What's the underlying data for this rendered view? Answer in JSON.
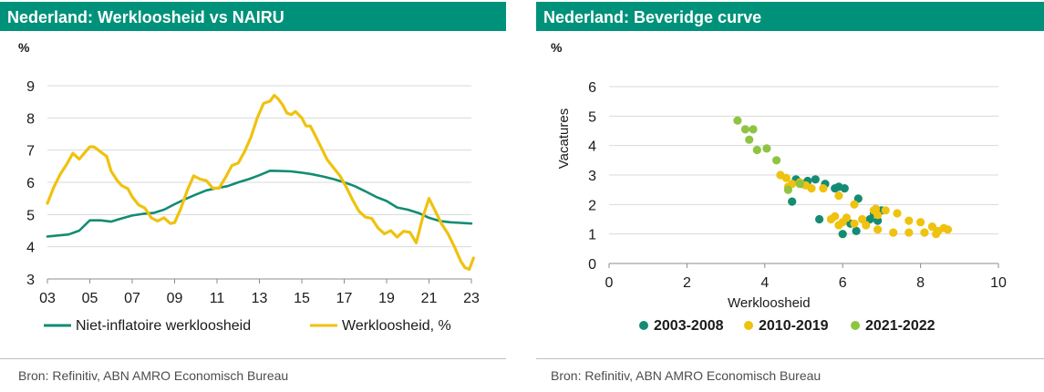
{
  "colors": {
    "header": "#00917a",
    "green": "#138c73",
    "gold": "#efc20f",
    "lightgreen": "#8fc442",
    "grid": "#d9d9d9",
    "axis": "#8c8c8c"
  },
  "left": {
    "title": "Nederland: Werkloosheid vs NAIRU",
    "unit": "%",
    "source": "Bron: Refinitiv, ABN AMRO Economisch Bureau"
  },
  "right": {
    "title": "Nederland: Beveridge curve",
    "unit": "%",
    "source": "Bron: Refinitiv, ABN AMRO Economisch Bureau"
  },
  "chart_data": [
    {
      "type": "line",
      "title": "Nederland: Werkloosheid vs NAIRU",
      "ylabel": "%",
      "xlim": [
        3,
        23
      ],
      "ylim": [
        3,
        9
      ],
      "xticks": [
        "03",
        "05",
        "07",
        "09",
        "11",
        "13",
        "15",
        "17",
        "19",
        "21",
        "23"
      ],
      "yticks": [
        "3",
        "4",
        "5",
        "6",
        "7",
        "8",
        "9"
      ],
      "series": [
        {
          "name": "Niet-inflatoire werkloosheid",
          "color": "#138c73",
          "x": [
            3.0,
            3.5,
            4.0,
            4.5,
            5.0,
            5.5,
            6.0,
            6.5,
            7.0,
            7.5,
            8.0,
            8.5,
            9.0,
            9.5,
            10.0,
            10.5,
            11.0,
            11.5,
            12.0,
            12.5,
            13.0,
            13.5,
            14.0,
            14.5,
            15.0,
            15.5,
            16.0,
            16.5,
            17.0,
            17.5,
            18.0,
            18.5,
            19.0,
            19.5,
            20.0,
            20.5,
            21.0,
            21.5,
            22.0,
            22.5,
            23.0
          ],
          "y": [
            4.32,
            4.35,
            4.38,
            4.5,
            4.82,
            4.82,
            4.78,
            4.88,
            4.97,
            5.02,
            5.05,
            5.15,
            5.32,
            5.48,
            5.62,
            5.75,
            5.82,
            5.88,
            6.0,
            6.1,
            6.22,
            6.36,
            6.35,
            6.34,
            6.3,
            6.25,
            6.18,
            6.1,
            6.0,
            5.88,
            5.72,
            5.55,
            5.42,
            5.22,
            5.15,
            5.05,
            4.9,
            4.8,
            4.76,
            4.74,
            4.72
          ]
        },
        {
          "name": "Werkloosheid, %",
          "color": "#efc20f",
          "x": [
            3.0,
            3.3,
            3.6,
            3.9,
            4.2,
            4.5,
            4.8,
            5.0,
            5.2,
            5.5,
            5.8,
            6.0,
            6.3,
            6.5,
            6.8,
            7.0,
            7.3,
            7.6,
            7.9,
            8.2,
            8.5,
            8.8,
            9.0,
            9.3,
            9.6,
            9.9,
            10.2,
            10.5,
            10.8,
            11.1,
            11.4,
            11.7,
            12.0,
            12.3,
            12.6,
            12.9,
            13.2,
            13.5,
            13.7,
            13.9,
            14.1,
            14.3,
            14.5,
            14.7,
            15.0,
            15.2,
            15.4,
            15.6,
            15.9,
            16.2,
            16.5,
            16.8,
            17.1,
            17.4,
            17.7,
            18.0,
            18.3,
            18.6,
            18.9,
            19.2,
            19.5,
            19.8,
            20.1,
            20.4,
            20.7,
            21.0,
            21.3,
            21.6,
            21.9,
            22.2,
            22.5,
            22.7,
            22.9,
            23.1
          ],
          "y": [
            5.35,
            5.85,
            6.25,
            6.55,
            6.9,
            6.72,
            6.95,
            7.1,
            7.1,
            6.95,
            6.8,
            6.35,
            6.05,
            5.9,
            5.8,
            5.55,
            5.3,
            5.2,
            4.9,
            4.8,
            4.9,
            4.72,
            4.75,
            5.2,
            5.75,
            6.2,
            6.1,
            6.05,
            5.82,
            5.82,
            6.15,
            6.52,
            6.6,
            6.95,
            7.4,
            8.0,
            8.45,
            8.52,
            8.7,
            8.58,
            8.4,
            8.15,
            8.1,
            8.2,
            8.0,
            7.75,
            7.75,
            7.5,
            7.1,
            6.7,
            6.45,
            6.2,
            5.85,
            5.45,
            5.1,
            4.92,
            4.88,
            4.58,
            4.4,
            4.5,
            4.3,
            4.48,
            4.45,
            4.12,
            4.9,
            5.5,
            5.1,
            4.7,
            4.4,
            4.0,
            3.55,
            3.35,
            3.3,
            3.65
          ]
        }
      ],
      "legend": "bottom"
    },
    {
      "type": "scatter",
      "title": "Nederland: Beveridge curve",
      "xlabel": "Werkloosheid",
      "ylabel": "Vacatures",
      "unit_label": "%",
      "xlim": [
        0,
        10
      ],
      "ylim": [
        0,
        6
      ],
      "xticks": [
        "0",
        "2",
        "4",
        "6",
        "8",
        "10"
      ],
      "yticks": [
        "0",
        "1",
        "2",
        "3",
        "4",
        "5",
        "6"
      ],
      "series": [
        {
          "name": "2003-2008",
          "color": "#138c73",
          "points": [
            [
              4.7,
              2.1
            ],
            [
              4.8,
              2.85
            ],
            [
              4.95,
              2.7
            ],
            [
              5.1,
              2.8
            ],
            [
              5.3,
              2.85
            ],
            [
              5.55,
              2.7
            ],
            [
              5.8,
              2.55
            ],
            [
              5.9,
              2.6
            ],
            [
              6.05,
              2.55
            ],
            [
              6.4,
              2.2
            ],
            [
              6.85,
              1.85
            ],
            [
              7.0,
              1.8
            ],
            [
              6.7,
              1.5
            ],
            [
              6.9,
              1.45
            ],
            [
              5.4,
              1.5
            ],
            [
              6.0,
              1.0
            ],
            [
              6.35,
              1.1
            ],
            [
              6.6,
              1.4
            ],
            [
              6.8,
              1.7
            ],
            [
              6.2,
              1.35
            ]
          ]
        },
        {
          "name": "2010-2019",
          "color": "#efc20f",
          "points": [
            [
              4.4,
              3.0
            ],
            [
              4.55,
              2.9
            ],
            [
              4.9,
              2.75
            ],
            [
              5.2,
              2.55
            ],
            [
              5.5,
              2.55
            ],
            [
              5.9,
              2.3
            ],
            [
              6.3,
              2.0
            ],
            [
              6.8,
              1.8
            ],
            [
              7.1,
              1.8
            ],
            [
              7.4,
              1.7
            ],
            [
              7.7,
              1.45
            ],
            [
              8.0,
              1.4
            ],
            [
              8.3,
              1.25
            ],
            [
              8.6,
              1.2
            ],
            [
              8.7,
              1.15
            ],
            [
              8.4,
              1.0
            ],
            [
              8.1,
              1.05
            ],
            [
              7.7,
              1.05
            ],
            [
              7.3,
              1.05
            ],
            [
              6.9,
              1.15
            ],
            [
              6.6,
              1.3
            ],
            [
              6.3,
              1.35
            ],
            [
              6.0,
              1.4
            ],
            [
              5.8,
              1.6
            ],
            [
              6.1,
              1.55
            ],
            [
              6.5,
              1.5
            ],
            [
              6.9,
              1.65
            ],
            [
              5.9,
              1.3
            ],
            [
              5.7,
              1.5
            ],
            [
              4.6,
              2.6
            ],
            [
              4.7,
              2.7
            ],
            [
              5.05,
              2.65
            ],
            [
              6.85,
              1.85
            ],
            [
              8.45,
              1.1
            ]
          ]
        },
        {
          "name": "2021-2022",
          "color": "#8fc442",
          "points": [
            [
              3.3,
              4.85
            ],
            [
              3.5,
              4.55
            ],
            [
              3.7,
              4.55
            ],
            [
              3.6,
              4.2
            ],
            [
              3.8,
              3.85
            ],
            [
              4.05,
              3.9
            ],
            [
              4.3,
              3.5
            ],
            [
              4.6,
              2.5
            ],
            [
              4.9,
              2.7
            ]
          ]
        }
      ],
      "legend": "bottom"
    }
  ]
}
